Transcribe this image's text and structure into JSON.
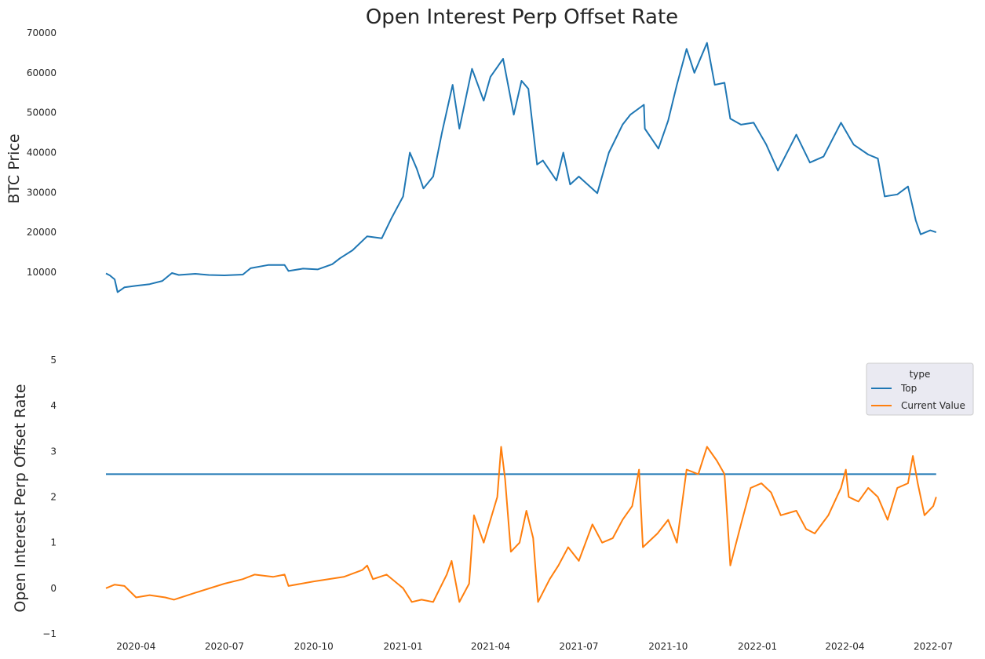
{
  "chart_data": [
    {
      "type": "line",
      "title": "Open Interest Perp Offset Rate",
      "ylabel": "BTC  Price",
      "ylim": [
        3500,
        70000
      ],
      "yticks": [
        10000,
        20000,
        30000,
        40000,
        50000,
        60000,
        70000
      ],
      "xlim": [
        "2020-03-01",
        "2022-07-05"
      ],
      "grid": false,
      "series": [
        {
          "color": "#1f77b4",
          "points": [
            [
              "2020-03-01",
              9700
            ],
            [
              "2020-03-05",
              9200
            ],
            [
              "2020-03-10",
              8200
            ],
            [
              "2020-03-13",
              5000
            ],
            [
              "2020-03-20",
              6200
            ],
            [
              "2020-04-01",
              6600
            ],
            [
              "2020-04-15",
              7000
            ],
            [
              "2020-04-28",
              7800
            ],
            [
              "2020-05-08",
              9800
            ],
            [
              "2020-05-15",
              9300
            ],
            [
              "2020-06-01",
              9600
            ],
            [
              "2020-06-15",
              9300
            ],
            [
              "2020-07-01",
              9200
            ],
            [
              "2020-07-20",
              9400
            ],
            [
              "2020-07-28",
              11000
            ],
            [
              "2020-08-15",
              11800
            ],
            [
              "2020-09-01",
              11800
            ],
            [
              "2020-09-05",
              10300
            ],
            [
              "2020-09-20",
              10900
            ],
            [
              "2020-10-05",
              10700
            ],
            [
              "2020-10-20",
              12000
            ],
            [
              "2020-10-28",
              13500
            ],
            [
              "2020-11-10",
              15500
            ],
            [
              "2020-11-25",
              19000
            ],
            [
              "2020-12-10",
              18500
            ],
            [
              "2020-12-20",
              23500
            ],
            [
              "2021-01-01",
              29000
            ],
            [
              "2021-01-08",
              40000
            ],
            [
              "2021-01-15",
              36000
            ],
            [
              "2021-01-22",
              31000
            ],
            [
              "2021-02-01",
              34000
            ],
            [
              "2021-02-10",
              45000
            ],
            [
              "2021-02-21",
              57000
            ],
            [
              "2021-02-28",
              46000
            ],
            [
              "2021-03-13",
              61000
            ],
            [
              "2021-03-25",
              53000
            ],
            [
              "2021-04-01",
              59000
            ],
            [
              "2021-04-14",
              63500
            ],
            [
              "2021-04-25",
              49500
            ],
            [
              "2021-05-03",
              58000
            ],
            [
              "2021-05-10",
              56000
            ],
            [
              "2021-05-19",
              37000
            ],
            [
              "2021-05-25",
              38000
            ],
            [
              "2021-06-08",
              33000
            ],
            [
              "2021-06-15",
              40000
            ],
            [
              "2021-06-22",
              32000
            ],
            [
              "2021-07-01",
              34000
            ],
            [
              "2021-07-20",
              29800
            ],
            [
              "2021-08-01",
              40000
            ],
            [
              "2021-08-15",
              47000
            ],
            [
              "2021-08-23",
              49500
            ],
            [
              "2021-09-06",
              52000
            ],
            [
              "2021-09-07",
              46000
            ],
            [
              "2021-09-21",
              41000
            ],
            [
              "2021-10-01",
              48000
            ],
            [
              "2021-10-10",
              57000
            ],
            [
              "2021-10-20",
              66000
            ],
            [
              "2021-10-28",
              60000
            ],
            [
              "2021-11-10",
              67500
            ],
            [
              "2021-11-18",
              57000
            ],
            [
              "2021-11-28",
              57500
            ],
            [
              "2021-12-04",
              48500
            ],
            [
              "2021-12-15",
              47000
            ],
            [
              "2021-12-28",
              47500
            ],
            [
              "2022-01-10",
              42000
            ],
            [
              "2022-01-22",
              35500
            ],
            [
              "2022-02-10",
              44500
            ],
            [
              "2022-02-24",
              37500
            ],
            [
              "2022-03-10",
              39000
            ],
            [
              "2022-03-28",
              47500
            ],
            [
              "2022-04-10",
              42000
            ],
            [
              "2022-04-25",
              39500
            ],
            [
              "2022-05-05",
              38500
            ],
            [
              "2022-05-12",
              29000
            ],
            [
              "2022-05-25",
              29500
            ],
            [
              "2022-06-05",
              31500
            ],
            [
              "2022-06-13",
              23000
            ],
            [
              "2022-06-18",
              19500
            ],
            [
              "2022-06-28",
              20500
            ],
            [
              "2022-07-04",
              20000
            ]
          ]
        }
      ]
    },
    {
      "type": "line",
      "ylabel": "Open Interest Perp Offset Rate",
      "ylim": [
        -1,
        5
      ],
      "yticks": [
        -1,
        0,
        1,
        2,
        3,
        4,
        5
      ],
      "ytick_labels": [
        "−1",
        "0",
        "1",
        "2",
        "3",
        "4",
        "5"
      ],
      "xlim": [
        "2020-03-01",
        "2022-07-05"
      ],
      "xticks": [
        "2020-04",
        "2020-07",
        "2020-10",
        "2021-01",
        "2021-04",
        "2021-07",
        "2021-10",
        "2022-01",
        "2022-04",
        "2022-07"
      ],
      "grid": false,
      "legend": {
        "title": "type",
        "placement": "top-right",
        "entries": [
          "Top",
          "Current Value"
        ]
      },
      "series": [
        {
          "name": "Top",
          "color": "#1f77b4",
          "points": [
            [
              "2020-03-01",
              2.5
            ],
            [
              "2022-07-04",
              2.5
            ]
          ]
        },
        {
          "name": "Current Value",
          "color": "#ff7f0e",
          "points": [
            [
              "2020-03-01",
              0.0
            ],
            [
              "2020-03-10",
              0.08
            ],
            [
              "2020-03-20",
              0.05
            ],
            [
              "2020-04-01",
              -0.2
            ],
            [
              "2020-04-15",
              -0.15
            ],
            [
              "2020-05-01",
              -0.2
            ],
            [
              "2020-05-10",
              -0.25
            ],
            [
              "2020-06-01",
              -0.1
            ],
            [
              "2020-07-01",
              0.1
            ],
            [
              "2020-07-20",
              0.2
            ],
            [
              "2020-08-01",
              0.3
            ],
            [
              "2020-08-20",
              0.25
            ],
            [
              "2020-09-01",
              0.3
            ],
            [
              "2020-09-05",
              0.05
            ],
            [
              "2020-10-01",
              0.15
            ],
            [
              "2020-11-01",
              0.25
            ],
            [
              "2020-11-20",
              0.4
            ],
            [
              "2020-11-25",
              0.5
            ],
            [
              "2020-12-01",
              0.2
            ],
            [
              "2020-12-15",
              0.3
            ],
            [
              "2021-01-01",
              0.0
            ],
            [
              "2021-01-10",
              -0.3
            ],
            [
              "2021-01-20",
              -0.25
            ],
            [
              "2021-02-01",
              -0.3
            ],
            [
              "2021-02-15",
              0.3
            ],
            [
              "2021-02-20",
              0.6
            ],
            [
              "2021-02-28",
              -0.3
            ],
            [
              "2021-03-10",
              0.1
            ],
            [
              "2021-03-15",
              1.6
            ],
            [
              "2021-03-25",
              1.0
            ],
            [
              "2021-04-01",
              1.5
            ],
            [
              "2021-04-08",
              2.0
            ],
            [
              "2021-04-12",
              3.1
            ],
            [
              "2021-04-16",
              2.4
            ],
            [
              "2021-04-22",
              0.8
            ],
            [
              "2021-05-01",
              1.0
            ],
            [
              "2021-05-08",
              1.7
            ],
            [
              "2021-05-15",
              1.1
            ],
            [
              "2021-05-20",
              -0.3
            ],
            [
              "2021-06-01",
              0.2
            ],
            [
              "2021-06-10",
              0.5
            ],
            [
              "2021-06-20",
              0.9
            ],
            [
              "2021-07-01",
              0.6
            ],
            [
              "2021-07-15",
              1.4
            ],
            [
              "2021-07-25",
              1.0
            ],
            [
              "2021-08-05",
              1.1
            ],
            [
              "2021-08-15",
              1.5
            ],
            [
              "2021-08-25",
              1.8
            ],
            [
              "2021-09-01",
              2.6
            ],
            [
              "2021-09-05",
              0.9
            ],
            [
              "2021-09-20",
              1.2
            ],
            [
              "2021-10-01",
              1.5
            ],
            [
              "2021-10-10",
              1.0
            ],
            [
              "2021-10-20",
              2.6
            ],
            [
              "2021-11-01",
              2.5
            ],
            [
              "2021-11-10",
              3.1
            ],
            [
              "2021-11-20",
              2.8
            ],
            [
              "2021-11-28",
              2.5
            ],
            [
              "2021-12-04",
              0.5
            ],
            [
              "2021-12-15",
              1.4
            ],
            [
              "2021-12-25",
              2.2
            ],
            [
              "2022-01-05",
              2.3
            ],
            [
              "2022-01-15",
              2.1
            ],
            [
              "2022-01-25",
              1.6
            ],
            [
              "2022-02-10",
              1.7
            ],
            [
              "2022-02-20",
              1.3
            ],
            [
              "2022-03-01",
              1.2
            ],
            [
              "2022-03-15",
              1.6
            ],
            [
              "2022-03-28",
              2.2
            ],
            [
              "2022-04-02",
              2.6
            ],
            [
              "2022-04-05",
              2.0
            ],
            [
              "2022-04-15",
              1.9
            ],
            [
              "2022-04-25",
              2.2
            ],
            [
              "2022-05-05",
              2.0
            ],
            [
              "2022-05-15",
              1.5
            ],
            [
              "2022-05-25",
              2.2
            ],
            [
              "2022-06-05",
              2.3
            ],
            [
              "2022-06-10",
              2.9
            ],
            [
              "2022-06-15",
              2.3
            ],
            [
              "2022-06-22",
              1.6
            ],
            [
              "2022-07-01",
              1.8
            ],
            [
              "2022-07-04",
              2.0
            ]
          ]
        }
      ]
    }
  ]
}
